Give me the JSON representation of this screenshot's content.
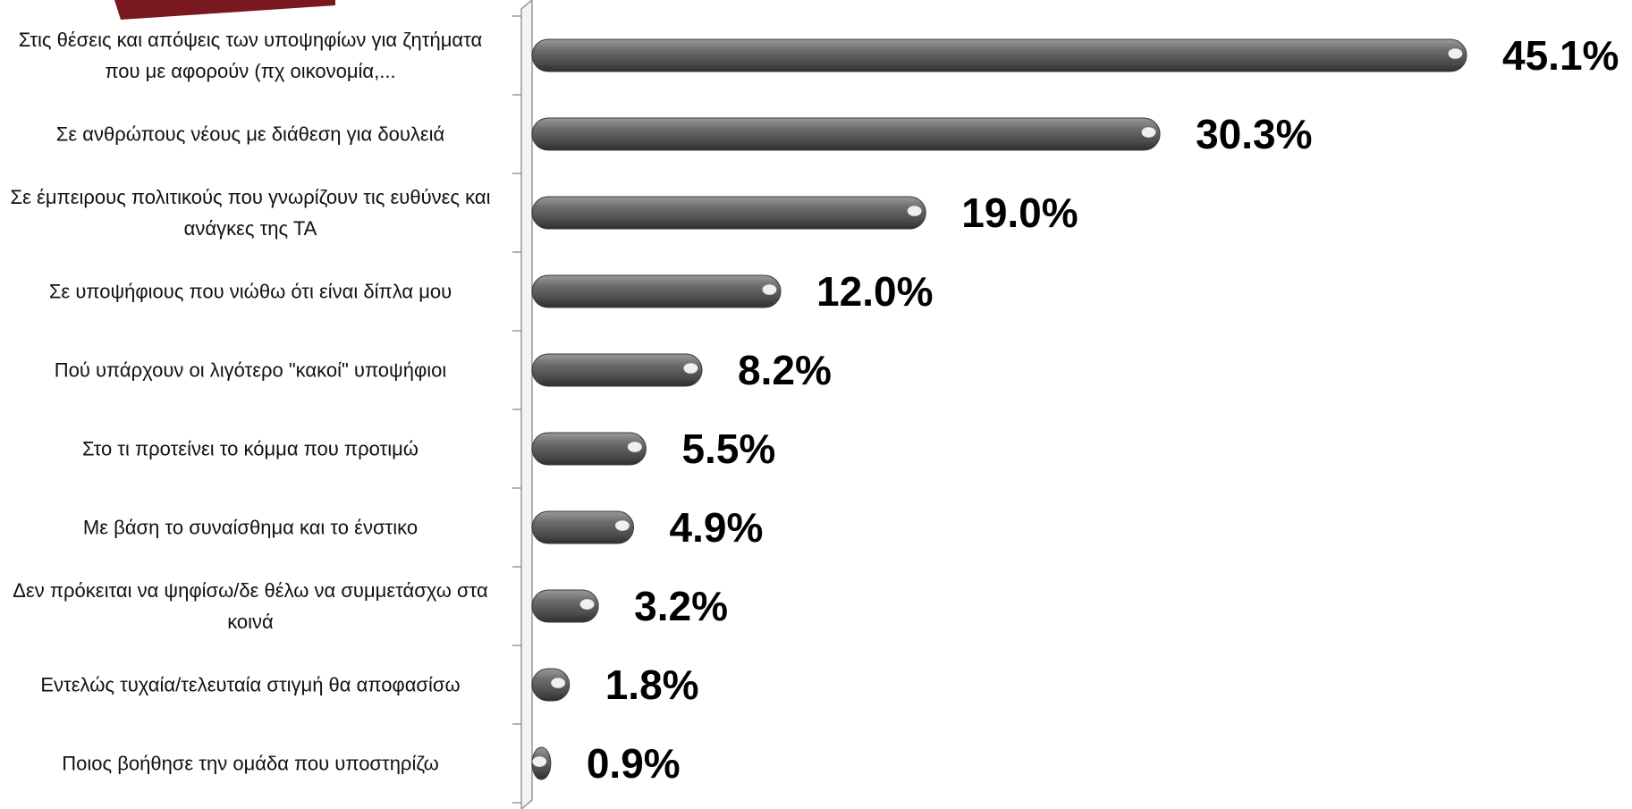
{
  "chart_data": {
    "type": "bar",
    "orientation": "horizontal",
    "categories": [
      "Στις θέσεις και απόψεις των υποψηφίων για ζητήματα που με αφορούν (πχ οικονομία,...",
      "Σε ανθρώπους νέους με διάθεση για δουλειά",
      "Σε έμπειρους πολιτικούς που γνωρίζουν τις ευθύνες και ανάγκες της ΤΑ",
      "Σε υποψήφιους που νιώθω ότι είναι δίπλα μου",
      "Πού υπάρχουν οι λιγότερο \"κακοί\" υποψήφιοι",
      "Στο τι προτείνει το κόμμα που προτιμώ",
      "Με βάση το συναίσθημα και το ένστικο",
      "Δεν πρόκειται να ψηφίσω/δε θέλω να συμμετάσχω στα κοινά",
      "Εντελώς τυχαία/τελευταία στιγμή θα αποφασίσω",
      "Ποιος βοήθησε την ομάδα που υποστηρίζω"
    ],
    "values": [
      45.1,
      30.3,
      19.0,
      12.0,
      8.2,
      5.5,
      4.9,
      3.2,
      1.8,
      0.9
    ],
    "value_labels": [
      "45.1%",
      "30.3%",
      "19.0%",
      "12.0%",
      "8.2%",
      "5.5%",
      "4.9%",
      "3.2%",
      "1.8%",
      "0.9%"
    ],
    "color": "#5a5a5a"
  }
}
